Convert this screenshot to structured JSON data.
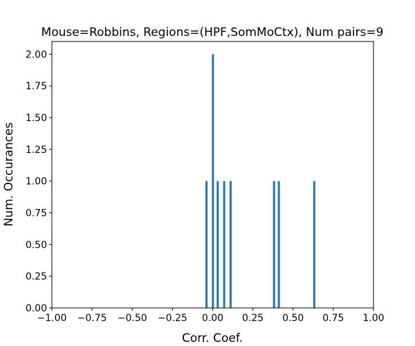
{
  "chart_data": {
    "type": "bar",
    "title": "Mouse=Robbins, Regions=(HPF,SomMoCtx), Num pairs=9",
    "xlabel": "Corr. Coef.",
    "ylabel": "Num. Occurances",
    "xlim": [
      -1.0,
      1.0
    ],
    "ylim": [
      0.0,
      2.1
    ],
    "xticks": [
      "−1.00",
      "−0.75",
      "−0.50",
      "−0.25",
      "0.00",
      "0.25",
      "0.50",
      "0.75",
      "1.00"
    ],
    "yticks": [
      "0.00",
      "0.25",
      "0.50",
      "0.75",
      "1.00",
      "1.25",
      "1.50",
      "1.75",
      "2.00"
    ],
    "bin_width": 0.01,
    "bars": [
      {
        "x": -0.04,
        "count": 1
      },
      {
        "x": 0.0,
        "count": 2
      },
      {
        "x": 0.03,
        "count": 1
      },
      {
        "x": 0.07,
        "count": 1
      },
      {
        "x": 0.11,
        "count": 1
      },
      {
        "x": 0.38,
        "count": 1
      },
      {
        "x": 0.41,
        "count": 1
      },
      {
        "x": 0.63,
        "count": 1
      }
    ],
    "bar_color": "#1f77b4",
    "grid": false
  }
}
